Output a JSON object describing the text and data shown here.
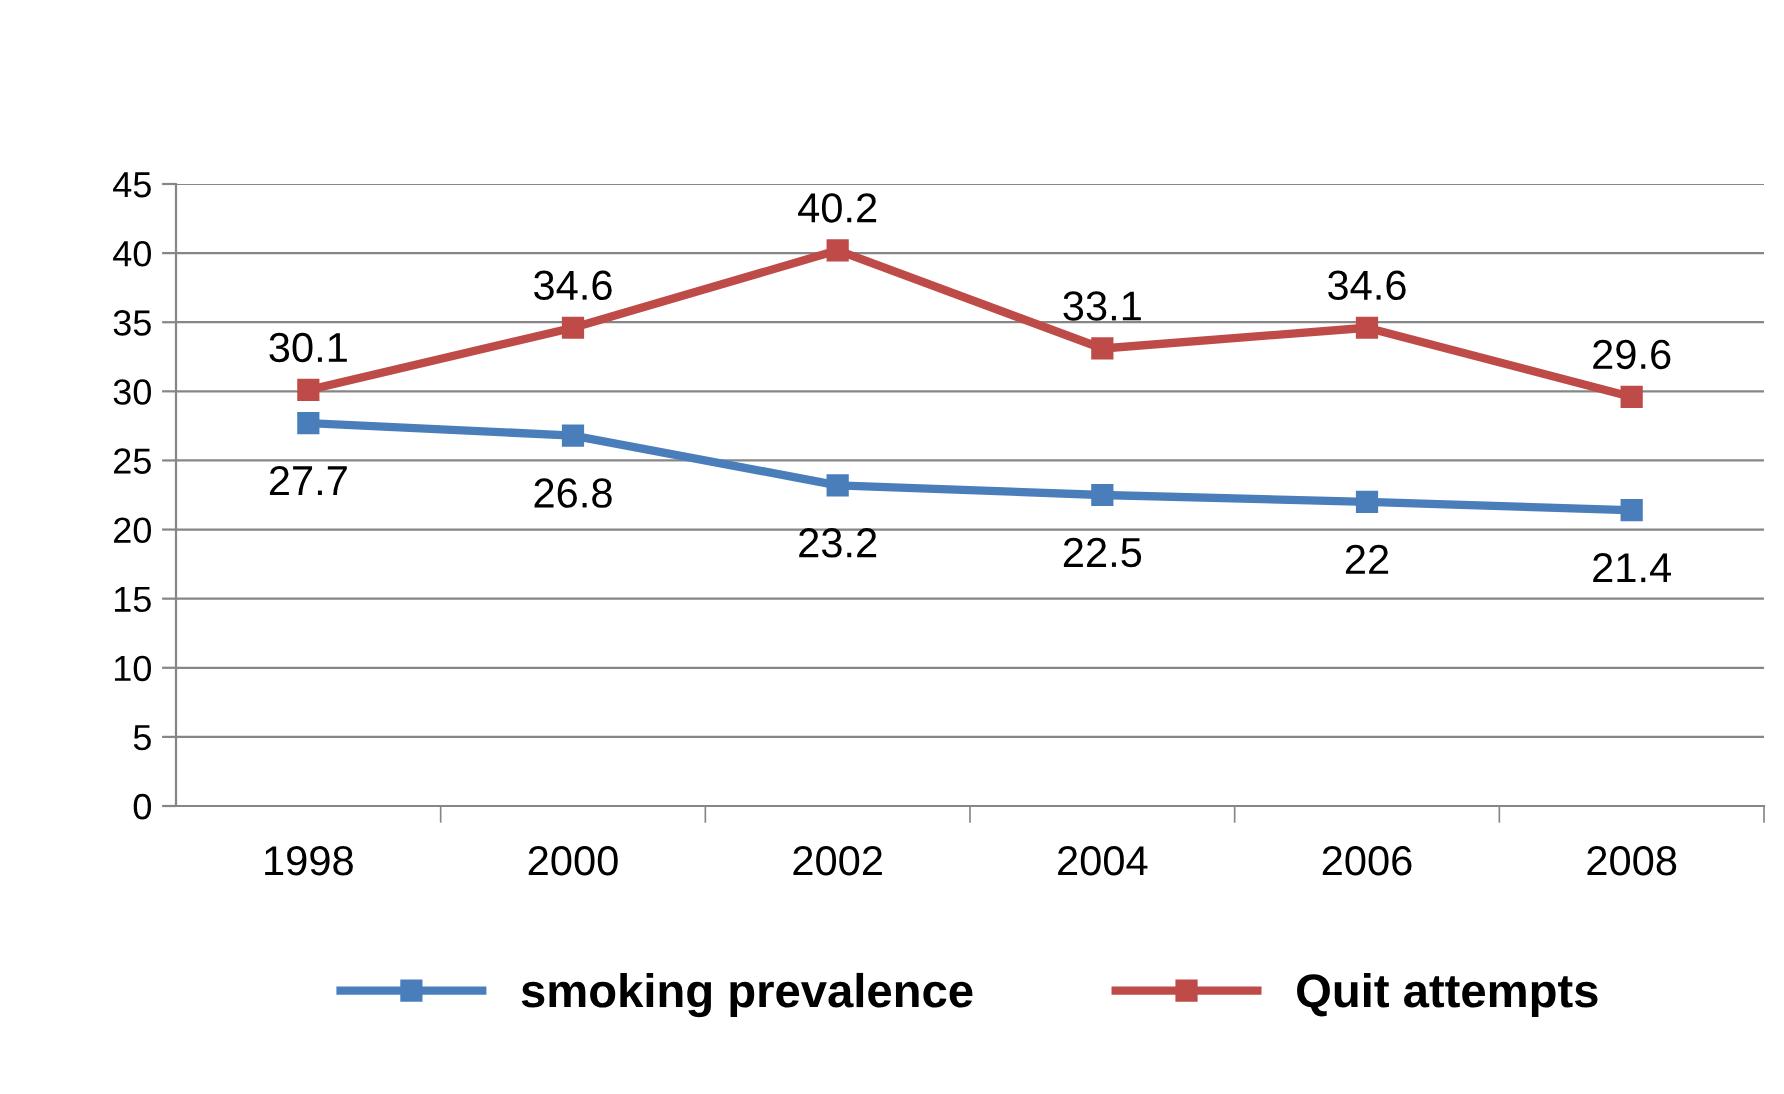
{
  "chart_data": {
    "type": "line",
    "categories": [
      "1998",
      "2000",
      "2002",
      "2004",
      "2006",
      "2008"
    ],
    "series": [
      {
        "name": "smoking prevalence",
        "color": "#4a7ebb",
        "values": [
          27.7,
          26.8,
          23.2,
          22.5,
          22,
          21.4
        ]
      },
      {
        "name": "Quit attempts",
        "color": "#be4b48",
        "values": [
          30.1,
          34.6,
          40.2,
          33.1,
          34.6,
          29.6
        ]
      }
    ],
    "ylim": [
      0,
      45
    ],
    "yticks": [
      0,
      5,
      10,
      15,
      20,
      25,
      30,
      35,
      40,
      45
    ],
    "grid": "y",
    "legend": "bottom",
    "marker": "square",
    "line_style": "solid",
    "data_labels": true
  }
}
